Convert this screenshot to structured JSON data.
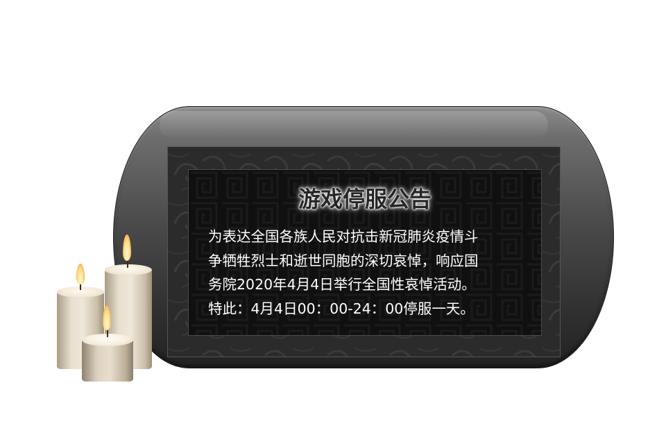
{
  "notice": {
    "title": "游戏停服公告",
    "body_lines": [
      "为表达全国各族人民对抗击新冠肺炎疫情斗",
      "争牺牲烈士和逝世同胞的深切哀悼，响应国",
      "务院2020年4月4日举行全国性哀悼活动。",
      "特此：4月4日00：00-24：00停服一天。"
    ]
  },
  "decoration": {
    "candles": [
      "candle-icon",
      "candle-icon",
      "candle-icon"
    ],
    "colors": {
      "plaque": "#4a4a4a",
      "panel": "#141414",
      "text": "#ffffff",
      "candle_wax": "#e6dccb"
    }
  }
}
